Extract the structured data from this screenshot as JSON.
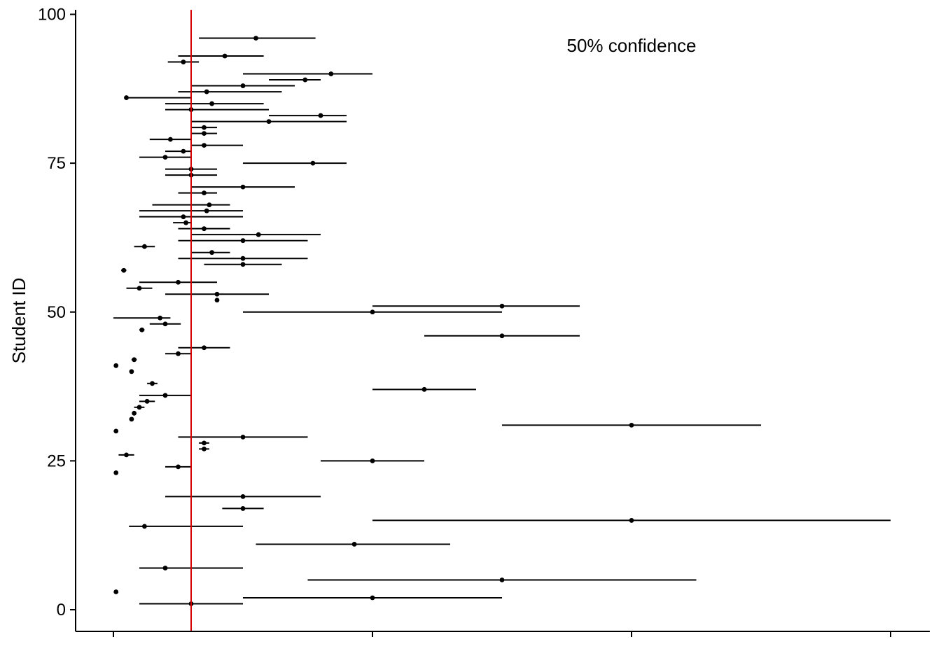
{
  "chart_data": {
    "type": "scatter",
    "subtype": "interval-plot",
    "title": "",
    "xlabel": "",
    "ylabel": "Student ID",
    "annotation": "50% confidence",
    "xlim": [
      -0.16,
      3.15
    ],
    "ylim": [
      -3.8,
      101
    ],
    "x_ticks": [
      0,
      1,
      2,
      3
    ],
    "x_tick_labels": [
      "",
      "",
      "",
      ""
    ],
    "y_ticks": [
      0,
      25,
      50,
      75,
      100
    ],
    "y_tick_labels": [
      "0",
      "25",
      "50",
      "75",
      "100"
    ],
    "reference_line": {
      "x": 0.3,
      "color": "#d40000"
    },
    "grid": false,
    "point_color": "#000000",
    "series": [
      {
        "id": [
          1,
          2,
          3,
          5,
          7,
          11,
          14,
          15,
          17,
          19,
          23,
          24,
          25,
          26,
          27,
          28,
          29,
          30,
          31,
          32,
          33,
          34,
          35,
          36,
          37,
          38,
          40,
          41,
          42,
          43,
          44,
          46,
          47,
          48,
          49,
          50,
          51,
          52,
          53,
          54,
          55,
          57,
          58,
          59,
          60,
          61,
          62,
          63,
          64,
          65,
          66,
          67,
          68,
          70,
          71,
          73,
          74,
          75,
          76,
          77,
          78,
          79,
          80,
          81,
          82,
          83,
          84,
          85,
          86,
          87,
          88,
          89,
          90,
          92,
          93,
          96
        ],
        "value": [
          0.3,
          1.0,
          0.01,
          1.5,
          0.2,
          0.93,
          0.12,
          2.0,
          0.5,
          0.5,
          0.01,
          0.25,
          1.0,
          0.05,
          0.35,
          0.35,
          0.5,
          0.01,
          2.0,
          0.07,
          0.08,
          0.1,
          0.13,
          0.2,
          1.2,
          0.15,
          0.07,
          0.01,
          0.08,
          0.25,
          0.35,
          1.5,
          0.11,
          0.2,
          0.18,
          1.0,
          1.5,
          0.4,
          0.4,
          0.1,
          0.25,
          0.04,
          0.5,
          0.5,
          0.38,
          0.12,
          0.5,
          0.56,
          0.35,
          0.28,
          0.27,
          0.36,
          0.37,
          0.35,
          0.5,
          0.3,
          0.3,
          0.77,
          0.2,
          0.27,
          0.35,
          0.22,
          0.35,
          0.35,
          0.6,
          0.8,
          0.3,
          0.38,
          0.05,
          0.36,
          0.5,
          0.74,
          0.84,
          0.27,
          0.43,
          0.55
        ],
        "lower": [
          0.1,
          0.5,
          0.01,
          0.75,
          0.1,
          0.55,
          0.06,
          1.0,
          0.42,
          0.2,
          0.01,
          0.2,
          0.8,
          0.02,
          0.33,
          0.33,
          0.25,
          0.01,
          1.5,
          0.07,
          0.08,
          0.08,
          0.1,
          0.1,
          1.0,
          0.13,
          0.07,
          0.01,
          0.07,
          0.2,
          0.25,
          1.2,
          0.1,
          0.14,
          0.0,
          0.5,
          1.0,
          0.4,
          0.2,
          0.05,
          0.1,
          0.03,
          0.35,
          0.25,
          0.3,
          0.08,
          0.25,
          0.3,
          0.25,
          0.23,
          0.1,
          0.1,
          0.15,
          0.25,
          0.3,
          0.2,
          0.2,
          0.5,
          0.1,
          0.2,
          0.3,
          0.14,
          0.3,
          0.3,
          0.3,
          0.6,
          0.2,
          0.2,
          0.05,
          0.25,
          0.3,
          0.6,
          0.5,
          0.21,
          0.25,
          0.33
        ],
        "upper": [
          0.5,
          1.5,
          0.01,
          2.25,
          0.5,
          1.3,
          0.5,
          3.0,
          0.58,
          0.8,
          0.01,
          0.3,
          1.2,
          0.08,
          0.37,
          0.37,
          0.75,
          0.01,
          2.5,
          0.07,
          0.08,
          0.12,
          0.16,
          0.3,
          1.4,
          0.17,
          0.07,
          0.01,
          0.09,
          0.3,
          0.45,
          1.8,
          0.12,
          0.26,
          0.22,
          1.5,
          1.8,
          0.4,
          0.6,
          0.15,
          0.4,
          0.05,
          0.65,
          0.75,
          0.45,
          0.16,
          0.75,
          0.8,
          0.45,
          0.3,
          0.5,
          0.5,
          0.45,
          0.4,
          0.7,
          0.4,
          0.4,
          0.9,
          0.3,
          0.3,
          0.5,
          0.3,
          0.4,
          0.4,
          0.9,
          0.9,
          0.6,
          0.58,
          0.3,
          0.65,
          0.7,
          0.8,
          1.0,
          0.33,
          0.58,
          0.78
        ]
      }
    ]
  }
}
